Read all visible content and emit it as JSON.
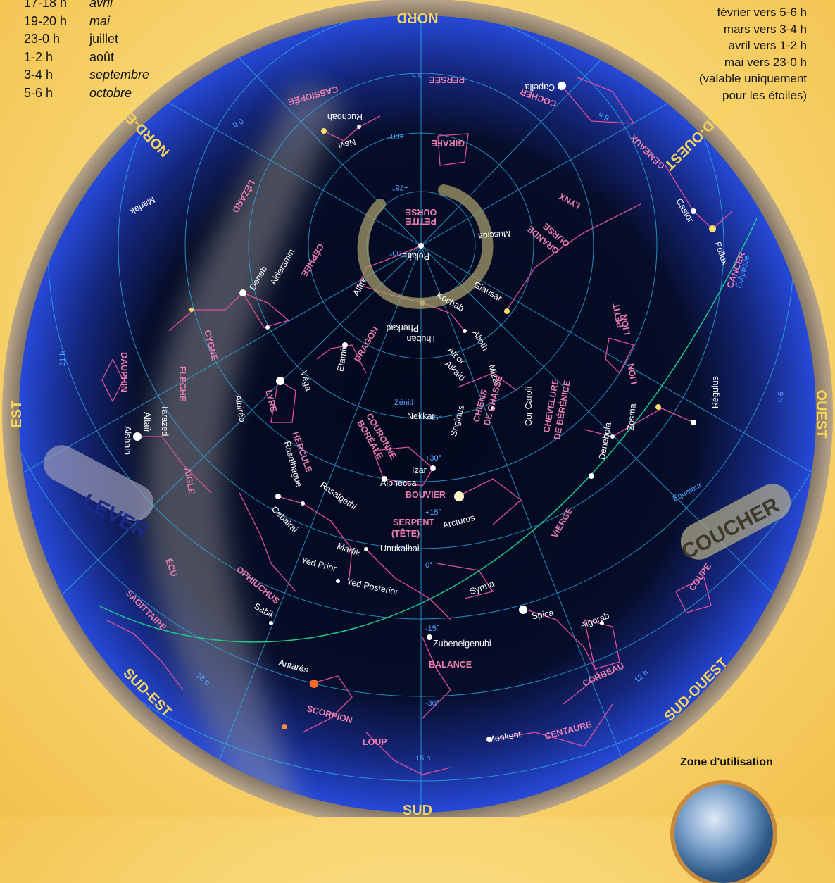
{
  "visibility_table": {
    "rows": [
      {
        "time": "17-18 h",
        "month": "avril",
        "italic": true
      },
      {
        "time": "19-20 h",
        "month": "mai",
        "italic": true
      },
      {
        "time": "23-0 h",
        "month": "juillet",
        "italic": false
      },
      {
        "time": "1-2 h",
        "month": "août",
        "italic": false
      },
      {
        "time": "3-4 h",
        "month": "septembre",
        "italic": true
      },
      {
        "time": "5-6 h",
        "month": "octobre",
        "italic": true
      }
    ]
  },
  "other_months": {
    "lines": [
      "février vers 5-6 h",
      "mars vers 3-4 h",
      "avril vers 1-2 h",
      "mai vers 23-0 h",
      "(valable uniquement",
      "pour les étoiles)"
    ]
  },
  "cardinals": {
    "nord": "NORD",
    "sud": "SUD",
    "est": "EST",
    "ouest": "OUEST",
    "nord_est": "NORD-EST",
    "nord_ouest": "NORD-OUEST",
    "sud_est": "SUD-EST",
    "sud_ouest": "SUD-OUEST"
  },
  "horizon_labels": {
    "rise": "LEVER",
    "set": "COUCHER"
  },
  "sky_labels": {
    "zenith": "Zénith",
    "ecliptic": "Écliptique",
    "equator": "Équateur",
    "ra_0h": "0 h",
    "ra_3h": "3 h",
    "ra_6h": "6 h",
    "ra_9h": "9 h",
    "ra_12h": "12 h",
    "ra_15h": "15 h",
    "ra_18h": "18 h",
    "ra_21h": "21 h",
    "dec_75": "+75°",
    "dec_60": "+60°",
    "dec_45": "+45°",
    "dec_30": "+30°",
    "dec_15": "+15°",
    "dec_0": "0°",
    "dec_m15": "-15°",
    "dec_m30": "-30°",
    "dec_90": "+90°"
  },
  "stars": {
    "capella": "Capella",
    "ruchbah": "Ruchbah",
    "navi": "Navi",
    "marfak": "Marfak",
    "castor": "Castor",
    "pollux": "Pollux",
    "muscida": "Muscida",
    "polaire": "Polaire",
    "alderamin": "Alderamin",
    "deneb": "Deneb",
    "alfirk": "Alfirk",
    "kochab": "Kochab",
    "pherkad": "Pherkad",
    "thuban": "Thuban",
    "giausar": "Giausar",
    "etamin": "Etamin",
    "alioth": "Alioth",
    "alcor": "Alcor",
    "mizar": "Mizar",
    "alkaid": "Alkaid",
    "vega": "Véga",
    "albireo": "Albiréo",
    "tarazed": "Tarazed",
    "altair": "Altaïr",
    "alshain": "Alshain",
    "nekkar": "Nekkar",
    "seginus": "Seginus",
    "cor_caroli": "Cor Caroli",
    "zosma": "Zosma",
    "regulus": "Régulus",
    "denebola": "Denebola",
    "izar": "Izar",
    "alphecca": "Alphecca",
    "arcturus": "Arcturus",
    "rasalhague": "Rasalhague",
    "rasalgethi": "Rasalgethi",
    "cebalrai": "Cebalrai",
    "unukalhai": "Unukalhai",
    "marfik": "Marfik",
    "yed_prior": "Yed Prior",
    "yed_posterior": "Yed Posterior",
    "syrma": "Syrma",
    "spica": "Spica",
    "algorab": "Algorab",
    "sabik": "Sabik",
    "zubenelgenubi": "Zubenelgenubi",
    "antares": "Antarès",
    "menkent": "Menkent"
  },
  "constellations": {
    "persee": "PERSÉE",
    "cassiopee": "CASSIOPÉE",
    "cocher": "COCHER",
    "girafe": "GIRAFE",
    "lezard": "LÉZARD",
    "gemeaux": "GÉMEAUX",
    "lynx": "LYNX",
    "petite_ourse_1": "PETITE",
    "petite_ourse_2": "OURSE",
    "grande_ourse_1": "GRANDE",
    "grande_ourse_2": "OURSE",
    "cephee": "CÉPHÉE",
    "cancer": "CANCER",
    "cygne": "CYGNE",
    "dragon": "DRAGON",
    "petit_lion_1": "PETIT",
    "petit_lion_2": "LION",
    "dauphin": "DAUPHIN",
    "fleche": "FLÈCHE",
    "lyre": "LYRE",
    "lion": "LION",
    "couronne_1": "COURONNE",
    "couronne_2": "BORÉALE",
    "chiens_1": "CHIENS",
    "chiens_2": "DE CHASSE",
    "chevelure_1": "CHEVELURE",
    "chevelure_2": "DE BÉRÉNICE",
    "hercule": "HERCULE",
    "aigle": "AIGLE",
    "bouvier": "BOUVIER",
    "serpent_1": "SERPENT",
    "serpent_2": "(TÊTE)",
    "vierge": "VIERGE",
    "ecu": "ÉCU",
    "ophiuchus": "OPHIUCHUS",
    "coupe": "COUPE",
    "sagittaire": "SAGITTAIRE",
    "balance": "BALANCE",
    "corbeau": "CORBEAU",
    "scorpion": "SCORPION",
    "loup": "LOUP",
    "centaure": "CENTAURE"
  },
  "zone": {
    "label": "Zone d'utilisation"
  },
  "colors": {
    "sky": "#050a1e",
    "horizon_blue": "#1e3db8",
    "grid": "#2fb4ee",
    "constellation": "#e0509b",
    "label_pink": "#e97fb0",
    "cardinal": "#f6d35a"
  }
}
